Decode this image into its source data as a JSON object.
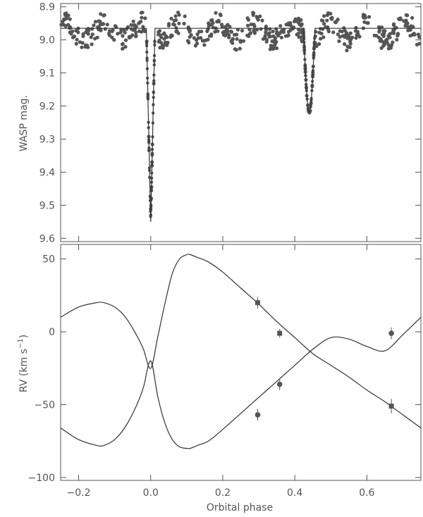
{
  "chart_data": [
    {
      "type": "scatter",
      "panel": "top",
      "xlabel": "",
      "ylabel": "WASP mag.",
      "xlim": [
        -0.25,
        0.75
      ],
      "ylim": [
        9.61,
        8.89
      ],
      "y_inverted": true,
      "yticks": [
        "8.9",
        "9.0",
        "9.1",
        "9.2",
        "9.3",
        "9.4",
        "9.5",
        "9.6"
      ],
      "grid": false,
      "baseline_mag": 8.965,
      "eclipses": [
        {
          "name": "primary",
          "phase": 0.0,
          "depth_mag": 9.55
        },
        {
          "name": "secondary",
          "phase": 0.44,
          "depth_mag": 9.22
        }
      ],
      "scatter_range_mag": [
        8.91,
        9.04
      ]
    },
    {
      "type": "scatter",
      "panel": "bottom",
      "xlabel": "Orbital phase",
      "ylabel_main": "RV (km s",
      "ylabel_sup": "−1",
      "ylabel_close": ")",
      "xlim": [
        -0.25,
        0.75
      ],
      "ylim": [
        -102,
        60
      ],
      "xticks": [
        "−0.2",
        "0.0",
        "0.2",
        "0.4",
        "0.6"
      ],
      "yticks": [
        "50",
        "0",
        "−50",
        "−100"
      ],
      "grid": false,
      "series": [
        {
          "marker": "square",
          "points": [
            {
              "x": 0.297,
              "y": 20,
              "err": 4
            },
            {
              "x": 0.358,
              "y": -1,
              "err": 3
            },
            {
              "x": 0.668,
              "y": -51,
              "err": 5
            }
          ]
        },
        {
          "marker": "circle",
          "points": [
            {
              "x": 0.297,
              "y": -57,
              "err": 4
            },
            {
              "x": 0.358,
              "y": -36,
              "err": 4
            },
            {
              "x": 0.668,
              "y": -1,
              "err": 4
            }
          ]
        }
      ],
      "model_curves": [
        {
          "x": [
            -0.25,
            -0.2,
            -0.15,
            -0.13,
            -0.1,
            -0.07,
            -0.04,
            -0.02,
            0.0,
            0.02,
            0.04,
            0.06,
            0.08,
            0.1,
            0.11,
            0.13,
            0.16,
            0.2,
            0.25,
            0.3,
            0.35,
            0.4,
            0.45,
            0.5,
            0.55,
            0.6,
            0.65,
            0.7,
            0.75
          ],
          "y": [
            10,
            17,
            20,
            20,
            17,
            10,
            -2,
            -12,
            -25,
            -3,
            20,
            40,
            50,
            53,
            53,
            51,
            48,
            41,
            30,
            19,
            7,
            -4,
            -15,
            -23,
            -31,
            -40,
            -48,
            -57,
            -66
          ]
        },
        {
          "x": [
            -0.25,
            -0.2,
            -0.15,
            -0.13,
            -0.1,
            -0.07,
            -0.04,
            -0.02,
            0.0,
            0.02,
            0.04,
            0.06,
            0.08,
            0.1,
            0.11,
            0.13,
            0.16,
            0.2,
            0.25,
            0.3,
            0.35,
            0.4,
            0.45,
            0.5,
            0.55,
            0.6,
            0.65,
            0.7,
            0.75
          ],
          "y": [
            -66,
            -74,
            -78,
            -78,
            -74,
            -65,
            -51,
            -38,
            -20,
            -45,
            -63,
            -74,
            -79,
            -80,
            -80,
            -78,
            -75,
            -67,
            -56,
            -45,
            -34,
            -23,
            -12,
            -4,
            -5,
            -10,
            -13,
            -2,
            10
          ]
        }
      ]
    }
  ]
}
